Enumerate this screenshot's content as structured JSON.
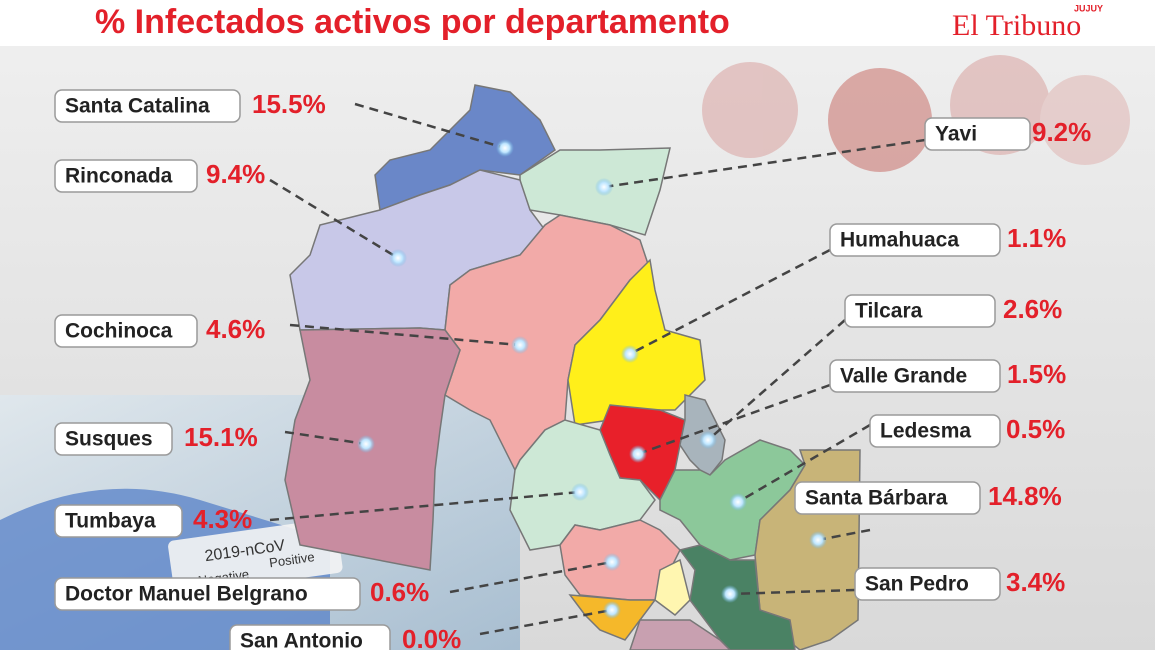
{
  "header": {
    "title": "% Infectados activos por departamento",
    "logo": "El Tribuno",
    "logo_region": "JUJUY"
  },
  "photo": {
    "text": "2019-nCoV",
    "negative": "Negative",
    "positive": "Positive"
  },
  "departments": [
    {
      "name": "Santa Catalina",
      "label": "15.5%"
    },
    {
      "name": "Rinconada",
      "label": "9.4%"
    },
    {
      "name": "Cochinoca",
      "label": "4.6%"
    },
    {
      "name": "Susques",
      "label": "15.1%"
    },
    {
      "name": "Tumbaya",
      "label": "4.3%"
    },
    {
      "name": "Doctor Manuel Belgrano",
      "label": "0.6%"
    },
    {
      "name": "San Antonio",
      "label": "0.0%"
    },
    {
      "name": "Yavi",
      "label": "9.2%"
    },
    {
      "name": "Humahuaca",
      "label": "1.1%"
    },
    {
      "name": "Tilcara",
      "label": "2.6%"
    },
    {
      "name": "Valle Grande",
      "label": "1.5%"
    },
    {
      "name": "Ledesma",
      "label": "0.5%"
    },
    {
      "name": "Santa Bárbara",
      "label": "14.8%"
    },
    {
      "name": "San Pedro",
      "label": "3.4%"
    }
  ]
}
